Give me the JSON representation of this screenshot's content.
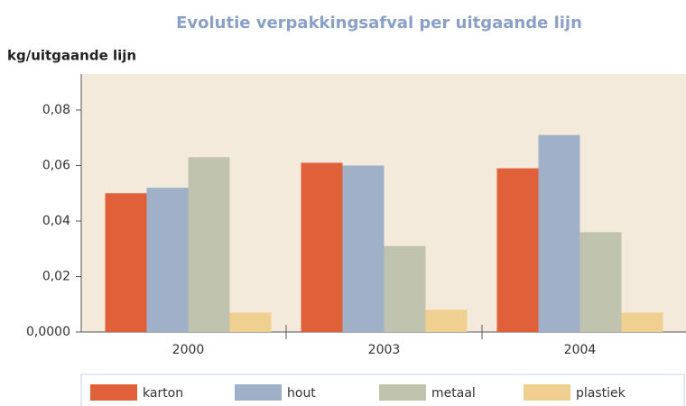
{
  "chart_data": {
    "type": "bar",
    "title": "Evolutie verpakkingsafval per uitgaande lijn",
    "y_label": "kg/uitgaande lijn",
    "categories": [
      "2000",
      "2003",
      "2004"
    ],
    "series": [
      {
        "name": "karton",
        "color": "#e0603a",
        "values": [
          0.05,
          0.061,
          0.059
        ]
      },
      {
        "name": "hout",
        "color": "#a0b0c8",
        "values": [
          0.052,
          0.06,
          0.071
        ]
      },
      {
        "name": "metaal",
        "color": "#c0c4ae",
        "values": [
          0.063,
          0.031,
          0.036
        ]
      },
      {
        "name": "plastiek",
        "color": "#f0d090",
        "values": [
          0.007,
          0.008,
          0.007
        ]
      }
    ],
    "ylim": [
      0,
      0.093
    ],
    "yticks": [
      {
        "value": 0,
        "label": "0,0000"
      },
      {
        "value": 0.02,
        "label": "0,02"
      },
      {
        "value": 0.04,
        "label": "0,04"
      },
      {
        "value": 0.06,
        "label": "0,06"
      },
      {
        "value": 0.08,
        "label": "0,08"
      }
    ]
  }
}
